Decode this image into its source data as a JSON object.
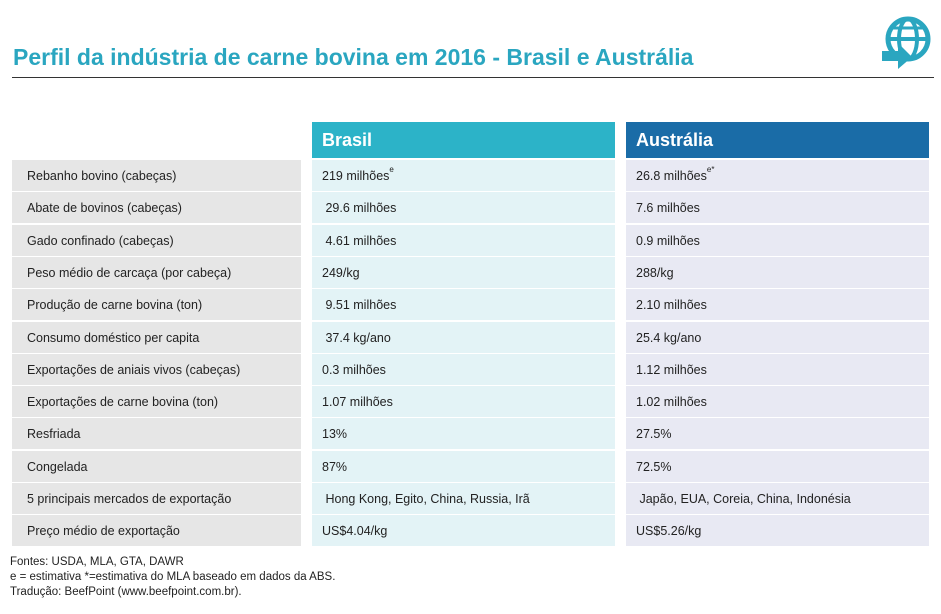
{
  "title": "Perfil da indústria de carne bovina em 2016 - Brasil e Austrália",
  "logo_icon": "globe-arrow-icon",
  "colors": {
    "title": "#2aa6c0",
    "brasil_header": "#2cb3c8",
    "australia_header": "#1a6ca7",
    "brasil_cell": "#e3f3f6",
    "australia_cell": "#e8e9f3",
    "label_cell": "#e6e6e6"
  },
  "headers": {
    "brasil": "Brasil",
    "australia": "Austrália"
  },
  "rows": [
    {
      "label": "Rebanho bovino (cabeças)",
      "brasil": "219 milhões",
      "brasil_sup": "e",
      "australia": "26.8 milhões",
      "australia_sup": "e*"
    },
    {
      "label": "Abate de bovinos (cabeças)",
      "brasil": " 29.6 milhões",
      "australia": "7.6 milhões"
    },
    {
      "label": "Gado confinado (cabeças)",
      "brasil": " 4.61 milhões",
      "australia": "0.9 milhões"
    },
    {
      "label": "Peso médio de carcaça (por cabeça)",
      "brasil": "249/kg",
      "australia": "288/kg"
    },
    {
      "label": "Produção de carne bovina (ton)",
      "brasil": " 9.51 milhões",
      "australia": "2.10 milhões"
    },
    {
      "label": "Consumo doméstico per capita",
      "brasil": " 37.4 kg/ano",
      "australia": "25.4 kg/ano"
    },
    {
      "label": "Exportações de aniais vivos (cabeças)",
      "brasil": "0.3 milhões",
      "australia": "1.12 milhões"
    },
    {
      "label": "Exportações de carne bovina (ton)",
      "brasil": "1.07 milhões",
      "australia": "1.02 milhões"
    },
    {
      "label": "Resfriada",
      "brasil": "13%",
      "australia": "27.5%"
    },
    {
      "label": "Congelada",
      "brasil": "87%",
      "australia": "72.5%"
    },
    {
      "label": "5 principais mercados de exportação",
      "brasil": " Hong Kong, Egito, China, Russia, Irã",
      "australia": " Japão, EUA, Coreia, China, Indonésia"
    },
    {
      "label": "Preço médio de exportação",
      "brasil": "US$4.04/kg",
      "australia": "US$5.26/kg"
    }
  ],
  "footer": {
    "line1": "Fontes: USDA, MLA, GTA, DAWR",
    "line2": "e = estimativa *=estimativa do MLA baseado em dados da ABS.",
    "line3": "Tradução: BeefPoint (www.beefpoint.com.br)."
  }
}
